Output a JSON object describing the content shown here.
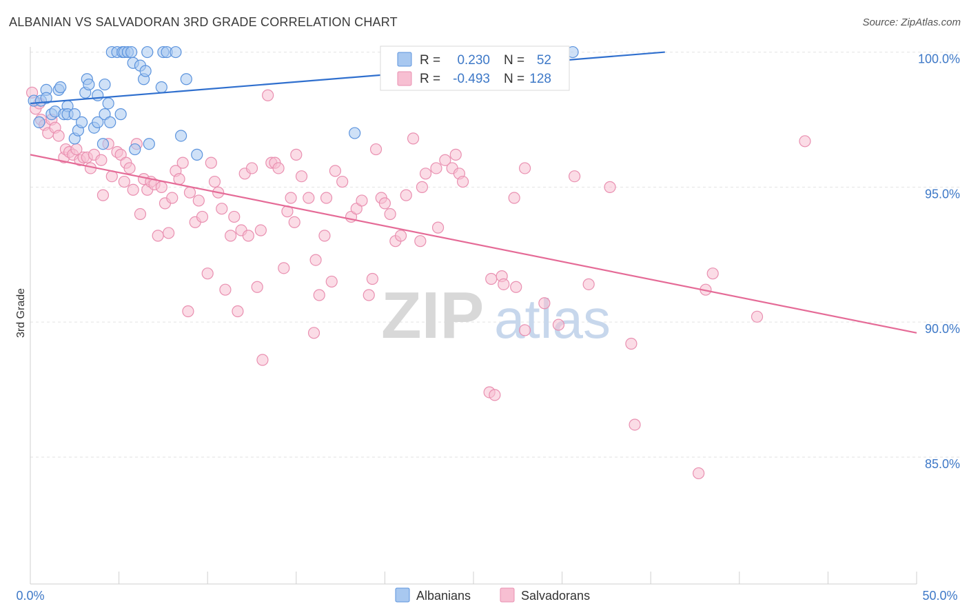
{
  "header": {
    "title": "ALBANIAN VS SALVADORAN 3RD GRADE CORRELATION CHART",
    "source": "Source: ZipAtlas.com"
  },
  "watermark": {
    "zip": "ZIP",
    "atlas": "atlas"
  },
  "legend_box": {
    "rows": [
      {
        "r_label": "R =",
        "r_value": "0.230",
        "n_label": "N =",
        "n_value": "52"
      },
      {
        "r_label": "R =",
        "r_value": "-0.493",
        "n_label": "N =",
        "n_value": "128"
      }
    ]
  },
  "bottom_legend": {
    "albanians": "Albanians",
    "salvadorans": "Salvadorans"
  },
  "colors": {
    "blue_fill": "#a8c8f0",
    "blue_stroke": "#5b93dd",
    "blue_line": "#2f6fce",
    "pink_fill": "#f7bfd2",
    "pink_stroke": "#e98fb0",
    "pink_line": "#e56b97",
    "axis_text": "#3d78c7"
  },
  "chart_data": {
    "type": "scatter",
    "title": "ALBANIAN VS SALVADORAN 3RD GRADE CORRELATION CHART",
    "xlabel": "",
    "ylabel": "3rd Grade",
    "xlim": [
      0,
      50
    ],
    "ylim": [
      80.3,
      100.5
    ],
    "x_tick_labels": [
      "0.0%",
      "50.0%"
    ],
    "y_ticks": [
      85,
      90,
      95,
      100
    ],
    "y_tick_labels": [
      "85.0%",
      "90.0%",
      "95.0%",
      "100.0%"
    ],
    "series": [
      {
        "name": "Albanians",
        "r": 0.23,
        "n": 52,
        "trend": {
          "x": [
            0,
            35.8
          ],
          "y": [
            98.1,
            100.0
          ]
        },
        "points": [
          [
            0.2,
            98.2
          ],
          [
            0.5,
            97.4
          ],
          [
            0.6,
            98.2
          ],
          [
            0.9,
            98.6
          ],
          [
            0.9,
            98.3
          ],
          [
            1.2,
            97.7
          ],
          [
            1.4,
            97.8
          ],
          [
            1.6,
            98.6
          ],
          [
            1.7,
            98.7
          ],
          [
            1.9,
            97.7
          ],
          [
            2.1,
            98.0
          ],
          [
            2.1,
            97.7
          ],
          [
            2.5,
            97.7
          ],
          [
            2.5,
            96.8
          ],
          [
            2.7,
            97.1
          ],
          [
            2.9,
            97.4
          ],
          [
            3.1,
            98.5
          ],
          [
            3.2,
            99.0
          ],
          [
            3.3,
            98.8
          ],
          [
            3.6,
            97.2
          ],
          [
            3.8,
            97.4
          ],
          [
            3.8,
            98.4
          ],
          [
            4.1,
            96.6
          ],
          [
            4.2,
            97.7
          ],
          [
            4.2,
            98.8
          ],
          [
            4.4,
            98.1
          ],
          [
            4.5,
            97.4
          ],
          [
            4.6,
            100.0
          ],
          [
            4.9,
            100.0
          ],
          [
            5.1,
            97.7
          ],
          [
            5.2,
            100.0
          ],
          [
            5.3,
            100.0
          ],
          [
            5.5,
            100.0
          ],
          [
            5.7,
            100.0
          ],
          [
            5.8,
            99.6
          ],
          [
            5.9,
            96.4
          ],
          [
            6.2,
            99.5
          ],
          [
            6.4,
            99.0
          ],
          [
            6.5,
            99.3
          ],
          [
            6.6,
            100.0
          ],
          [
            6.7,
            96.6
          ],
          [
            7.4,
            98.7
          ],
          [
            7.5,
            100.0
          ],
          [
            7.7,
            100.0
          ],
          [
            8.2,
            100.0
          ],
          [
            8.5,
            96.9
          ],
          [
            8.8,
            99.0
          ],
          [
            9.4,
            96.2
          ],
          [
            18.3,
            97.0
          ],
          [
            29.1,
            100.0
          ],
          [
            30.6,
            100.0
          ]
        ]
      },
      {
        "name": "Salvadorans",
        "r": -0.493,
        "n": 128,
        "trend": {
          "x": [
            0,
            50
          ],
          "y": [
            96.2,
            89.6
          ]
        },
        "points": [
          [
            0.1,
            98.5
          ],
          [
            0.3,
            97.9
          ],
          [
            0.5,
            98.1
          ],
          [
            0.6,
            97.5
          ],
          [
            0.8,
            97.3
          ],
          [
            1.0,
            97.0
          ],
          [
            1.2,
            97.5
          ],
          [
            1.4,
            97.2
          ],
          [
            1.6,
            96.9
          ],
          [
            1.9,
            96.1
          ],
          [
            2.0,
            96.4
          ],
          [
            2.2,
            96.3
          ],
          [
            2.4,
            96.2
          ],
          [
            2.6,
            96.4
          ],
          [
            2.8,
            96.0
          ],
          [
            3.0,
            96.1
          ],
          [
            3.2,
            96.1
          ],
          [
            3.4,
            95.7
          ],
          [
            3.6,
            96.2
          ],
          [
            4.0,
            96.0
          ],
          [
            4.1,
            94.7
          ],
          [
            4.4,
            96.6
          ],
          [
            4.6,
            95.4
          ],
          [
            4.9,
            96.3
          ],
          [
            5.1,
            96.2
          ],
          [
            5.3,
            95.2
          ],
          [
            5.4,
            95.9
          ],
          [
            5.6,
            95.7
          ],
          [
            5.8,
            94.9
          ],
          [
            6.0,
            96.6
          ],
          [
            6.2,
            94.0
          ],
          [
            6.4,
            95.3
          ],
          [
            6.6,
            94.9
          ],
          [
            6.8,
            95.2
          ],
          [
            7.0,
            95.1
          ],
          [
            7.2,
            93.2
          ],
          [
            7.4,
            95.0
          ],
          [
            7.6,
            94.4
          ],
          [
            7.8,
            93.3
          ],
          [
            8.0,
            94.6
          ],
          [
            8.2,
            95.6
          ],
          [
            8.4,
            95.3
          ],
          [
            8.6,
            95.9
          ],
          [
            8.9,
            90.4
          ],
          [
            9.0,
            94.8
          ],
          [
            9.3,
            93.7
          ],
          [
            9.5,
            94.5
          ],
          [
            9.7,
            93.9
          ],
          [
            10.0,
            91.8
          ],
          [
            10.2,
            95.9
          ],
          [
            10.4,
            95.2
          ],
          [
            10.6,
            94.8
          ],
          [
            10.8,
            94.2
          ],
          [
            11.0,
            91.2
          ],
          [
            11.3,
            93.2
          ],
          [
            11.5,
            93.9
          ],
          [
            11.7,
            90.4
          ],
          [
            11.9,
            93.4
          ],
          [
            12.1,
            95.5
          ],
          [
            12.3,
            93.2
          ],
          [
            12.5,
            95.7
          ],
          [
            12.8,
            91.3
          ],
          [
            13.0,
            93.4
          ],
          [
            13.1,
            88.6
          ],
          [
            13.4,
            98.4
          ],
          [
            13.6,
            95.9
          ],
          [
            13.8,
            95.9
          ],
          [
            14.0,
            95.7
          ],
          [
            14.3,
            92.0
          ],
          [
            14.5,
            94.1
          ],
          [
            14.7,
            94.6
          ],
          [
            14.9,
            93.7
          ],
          [
            15.0,
            96.2
          ],
          [
            15.3,
            95.4
          ],
          [
            15.7,
            94.6
          ],
          [
            16.0,
            89.6
          ],
          [
            16.1,
            92.3
          ],
          [
            16.3,
            91.0
          ],
          [
            16.6,
            93.2
          ],
          [
            16.7,
            94.6
          ],
          [
            17.0,
            91.5
          ],
          [
            17.2,
            95.6
          ],
          [
            17.6,
            95.2
          ],
          [
            18.1,
            93.9
          ],
          [
            18.4,
            94.2
          ],
          [
            18.7,
            94.5
          ],
          [
            19.1,
            91.0
          ],
          [
            19.3,
            91.6
          ],
          [
            19.5,
            96.4
          ],
          [
            19.8,
            94.6
          ],
          [
            20.0,
            94.4
          ],
          [
            20.3,
            94.0
          ],
          [
            20.6,
            93.0
          ],
          [
            20.9,
            93.2
          ],
          [
            21.2,
            94.7
          ],
          [
            21.6,
            96.8
          ],
          [
            22.0,
            93.0
          ],
          [
            22.1,
            95.0
          ],
          [
            22.3,
            95.5
          ],
          [
            22.9,
            95.7
          ],
          [
            23.0,
            93.5
          ],
          [
            23.4,
            96.0
          ],
          [
            23.8,
            95.7
          ],
          [
            24.0,
            96.2
          ],
          [
            24.2,
            95.5
          ],
          [
            24.4,
            95.2
          ],
          [
            25.5,
            100.0
          ],
          [
            25.7,
            100.0
          ],
          [
            25.9,
            87.4
          ],
          [
            26.2,
            87.3
          ],
          [
            26.0,
            91.6
          ],
          [
            26.6,
            91.7
          ],
          [
            26.7,
            91.4
          ],
          [
            27.3,
            94.6
          ],
          [
            27.4,
            91.3
          ],
          [
            27.9,
            89.7
          ],
          [
            27.9,
            95.7
          ],
          [
            29.0,
            90.7
          ],
          [
            29.8,
            89.9
          ],
          [
            30.7,
            95.4
          ],
          [
            31.5,
            91.4
          ],
          [
            32.7,
            95.0
          ],
          [
            33.9,
            89.2
          ],
          [
            34.1,
            86.2
          ],
          [
            37.7,
            84.4
          ],
          [
            38.1,
            91.2
          ],
          [
            38.5,
            91.8
          ],
          [
            41.0,
            90.2
          ],
          [
            43.7,
            96.7
          ]
        ]
      }
    ]
  }
}
